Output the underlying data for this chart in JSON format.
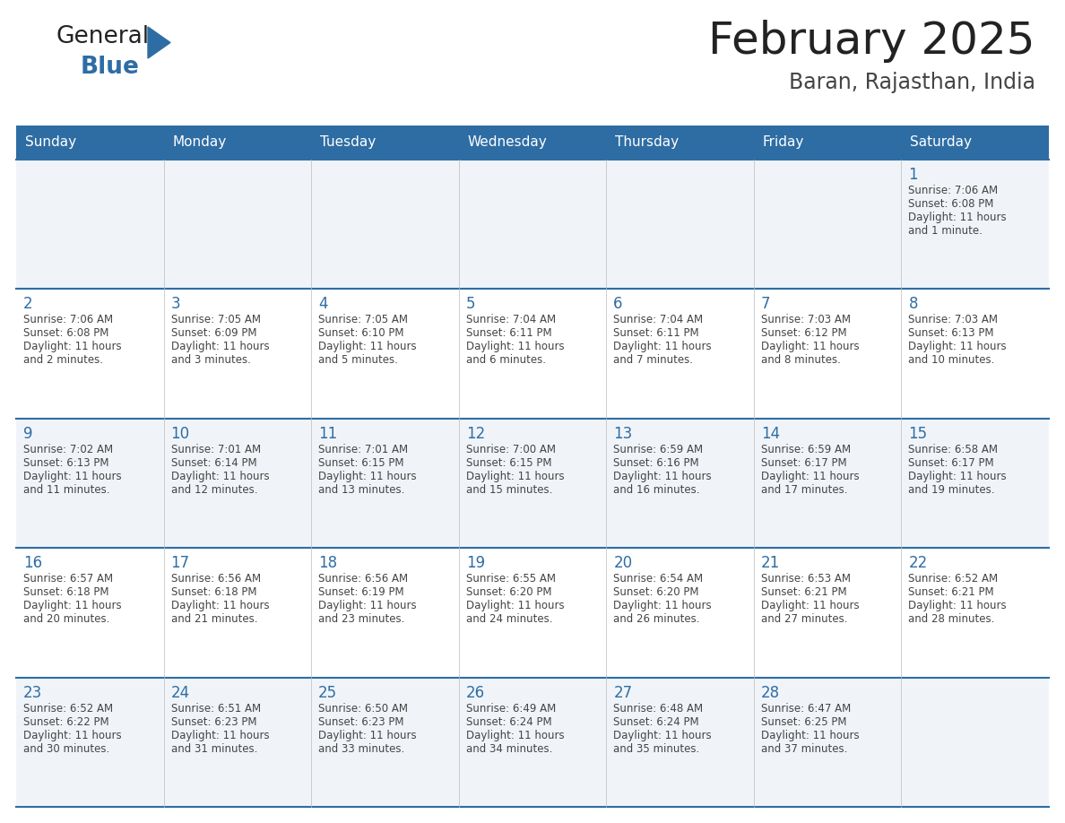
{
  "title": "February 2025",
  "subtitle": "Baran, Rajasthan, India",
  "days_of_week": [
    "Sunday",
    "Monday",
    "Tuesday",
    "Wednesday",
    "Thursday",
    "Friday",
    "Saturday"
  ],
  "header_bg": "#2E6DA4",
  "header_text": "#FFFFFF",
  "cell_bg_odd": "#F0F4F8",
  "cell_bg_even": "#FFFFFF",
  "day_number_color": "#2E6DA4",
  "text_color": "#444444",
  "line_color": "#2E6DA4",
  "calendar_data": [
    [
      null,
      null,
      null,
      null,
      null,
      null,
      {
        "day": "1",
        "sunrise": "7:06 AM",
        "sunset": "6:08 PM",
        "dl1": "Daylight: 11 hours",
        "dl2": "and 1 minute."
      }
    ],
    [
      {
        "day": "2",
        "sunrise": "7:06 AM",
        "sunset": "6:08 PM",
        "dl1": "Daylight: 11 hours",
        "dl2": "and 2 minutes."
      },
      {
        "day": "3",
        "sunrise": "7:05 AM",
        "sunset": "6:09 PM",
        "dl1": "Daylight: 11 hours",
        "dl2": "and 3 minutes."
      },
      {
        "day": "4",
        "sunrise": "7:05 AM",
        "sunset": "6:10 PM",
        "dl1": "Daylight: 11 hours",
        "dl2": "and 5 minutes."
      },
      {
        "day": "5",
        "sunrise": "7:04 AM",
        "sunset": "6:11 PM",
        "dl1": "Daylight: 11 hours",
        "dl2": "and 6 minutes."
      },
      {
        "day": "6",
        "sunrise": "7:04 AM",
        "sunset": "6:11 PM",
        "dl1": "Daylight: 11 hours",
        "dl2": "and 7 minutes."
      },
      {
        "day": "7",
        "sunrise": "7:03 AM",
        "sunset": "6:12 PM",
        "dl1": "Daylight: 11 hours",
        "dl2": "and 8 minutes."
      },
      {
        "day": "8",
        "sunrise": "7:03 AM",
        "sunset": "6:13 PM",
        "dl1": "Daylight: 11 hours",
        "dl2": "and 10 minutes."
      }
    ],
    [
      {
        "day": "9",
        "sunrise": "7:02 AM",
        "sunset": "6:13 PM",
        "dl1": "Daylight: 11 hours",
        "dl2": "and 11 minutes."
      },
      {
        "day": "10",
        "sunrise": "7:01 AM",
        "sunset": "6:14 PM",
        "dl1": "Daylight: 11 hours",
        "dl2": "and 12 minutes."
      },
      {
        "day": "11",
        "sunrise": "7:01 AM",
        "sunset": "6:15 PM",
        "dl1": "Daylight: 11 hours",
        "dl2": "and 13 minutes."
      },
      {
        "day": "12",
        "sunrise": "7:00 AM",
        "sunset": "6:15 PM",
        "dl1": "Daylight: 11 hours",
        "dl2": "and 15 minutes."
      },
      {
        "day": "13",
        "sunrise": "6:59 AM",
        "sunset": "6:16 PM",
        "dl1": "Daylight: 11 hours",
        "dl2": "and 16 minutes."
      },
      {
        "day": "14",
        "sunrise": "6:59 AM",
        "sunset": "6:17 PM",
        "dl1": "Daylight: 11 hours",
        "dl2": "and 17 minutes."
      },
      {
        "day": "15",
        "sunrise": "6:58 AM",
        "sunset": "6:17 PM",
        "dl1": "Daylight: 11 hours",
        "dl2": "and 19 minutes."
      }
    ],
    [
      {
        "day": "16",
        "sunrise": "6:57 AM",
        "sunset": "6:18 PM",
        "dl1": "Daylight: 11 hours",
        "dl2": "and 20 minutes."
      },
      {
        "day": "17",
        "sunrise": "6:56 AM",
        "sunset": "6:18 PM",
        "dl1": "Daylight: 11 hours",
        "dl2": "and 21 minutes."
      },
      {
        "day": "18",
        "sunrise": "6:56 AM",
        "sunset": "6:19 PM",
        "dl1": "Daylight: 11 hours",
        "dl2": "and 23 minutes."
      },
      {
        "day": "19",
        "sunrise": "6:55 AM",
        "sunset": "6:20 PM",
        "dl1": "Daylight: 11 hours",
        "dl2": "and 24 minutes."
      },
      {
        "day": "20",
        "sunrise": "6:54 AM",
        "sunset": "6:20 PM",
        "dl1": "Daylight: 11 hours",
        "dl2": "and 26 minutes."
      },
      {
        "day": "21",
        "sunrise": "6:53 AM",
        "sunset": "6:21 PM",
        "dl1": "Daylight: 11 hours",
        "dl2": "and 27 minutes."
      },
      {
        "day": "22",
        "sunrise": "6:52 AM",
        "sunset": "6:21 PM",
        "dl1": "Daylight: 11 hours",
        "dl2": "and 28 minutes."
      }
    ],
    [
      {
        "day": "23",
        "sunrise": "6:52 AM",
        "sunset": "6:22 PM",
        "dl1": "Daylight: 11 hours",
        "dl2": "and 30 minutes."
      },
      {
        "day": "24",
        "sunrise": "6:51 AM",
        "sunset": "6:23 PM",
        "dl1": "Daylight: 11 hours",
        "dl2": "and 31 minutes."
      },
      {
        "day": "25",
        "sunrise": "6:50 AM",
        "sunset": "6:23 PM",
        "dl1": "Daylight: 11 hours",
        "dl2": "and 33 minutes."
      },
      {
        "day": "26",
        "sunrise": "6:49 AM",
        "sunset": "6:24 PM",
        "dl1": "Daylight: 11 hours",
        "dl2": "and 34 minutes."
      },
      {
        "day": "27",
        "sunrise": "6:48 AM",
        "sunset": "6:24 PM",
        "dl1": "Daylight: 11 hours",
        "dl2": "and 35 minutes."
      },
      {
        "day": "28",
        "sunrise": "6:47 AM",
        "sunset": "6:25 PM",
        "dl1": "Daylight: 11 hours",
        "dl2": "and 37 minutes."
      },
      null
    ]
  ]
}
